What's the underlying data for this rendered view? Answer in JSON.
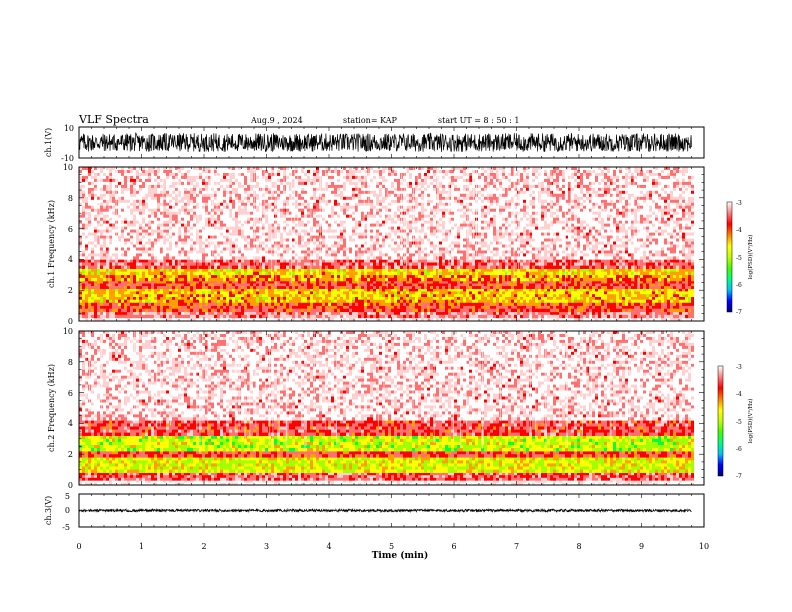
{
  "header": {
    "title": "VLF Spectra",
    "date": "Aug.9 , 2024",
    "station": "station= KAP",
    "start": "start UT = 8 : 50 : 1"
  },
  "colors": {
    "scale": [
      "#00008b",
      "#0000ff",
      "#00a0ff",
      "#00ffff",
      "#00ff40",
      "#a0ff00",
      "#ffff00",
      "#ffa000",
      "#ff0000",
      "#ff7070",
      "#ffd0d0",
      "#ffffff"
    ],
    "background": "#ffffff",
    "trace": "#000000"
  },
  "chart_data": [
    {
      "type": "line",
      "ylabel": "ch.1(V)",
      "ylim": [
        -10,
        10
      ],
      "yticks": [
        -10,
        10
      ],
      "xlim": [
        0,
        10
      ],
      "signal_range": [
        -6,
        6
      ],
      "note_visible": "dense waveform trace"
    },
    {
      "type": "heatmap",
      "ylabel": "ch.1 Frequency (kHz)",
      "ylim": [
        0,
        10
      ],
      "yticks": [
        0,
        2,
        4,
        6,
        8,
        10
      ],
      "xlim": [
        0,
        10
      ],
      "data_end_min": 9.8,
      "colorbar": {
        "label": "log(PSD)(V²/Hz)",
        "ticks": [
          -3,
          -4,
          -5,
          -6,
          -7
        ],
        "range": [
          -7,
          -3
        ]
      },
      "bands": [
        {
          "from_khz": 0.0,
          "to_khz": 0.2,
          "level": -3.0
        },
        {
          "from_khz": 0.2,
          "to_khz": 0.6,
          "level": -3.6
        },
        {
          "from_khz": 0.6,
          "to_khz": 1.0,
          "level": -4.0
        },
        {
          "from_khz": 1.0,
          "to_khz": 1.2,
          "level": -4.2
        },
        {
          "from_khz": 1.2,
          "to_khz": 2.1,
          "level": -4.6
        },
        {
          "from_khz": 2.1,
          "to_khz": 2.6,
          "level": -4.0
        },
        {
          "from_khz": 2.6,
          "to_khz": 3.0,
          "level": -4.4
        },
        {
          "from_khz": 3.0,
          "to_khz": 3.4,
          "level": -4.7
        },
        {
          "from_khz": 3.4,
          "to_khz": 4.0,
          "level": -3.8
        },
        {
          "from_khz": 4.0,
          "to_khz": 10.0,
          "level": -3.3
        }
      ]
    },
    {
      "type": "heatmap",
      "ylabel": "ch.2 Frequency (kHz)",
      "ylim": [
        0,
        10
      ],
      "yticks": [
        0,
        2,
        4,
        6,
        8,
        10
      ],
      "xlim": [
        0,
        10
      ],
      "data_end_min": 9.8,
      "colorbar": {
        "label": "log(PSD)(V²/Hz)",
        "ticks": [
          -3,
          -4,
          -5,
          -6,
          -7
        ],
        "range": [
          -7,
          -3
        ]
      },
      "bands": [
        {
          "from_khz": 0.0,
          "to_khz": 0.3,
          "level": -3.0
        },
        {
          "from_khz": 0.3,
          "to_khz": 0.8,
          "level": -3.8
        },
        {
          "from_khz": 0.8,
          "to_khz": 1.8,
          "level": -4.9
        },
        {
          "from_khz": 1.8,
          "to_khz": 2.2,
          "level": -4.0
        },
        {
          "from_khz": 2.2,
          "to_khz": 3.2,
          "level": -5.0
        },
        {
          "from_khz": 3.2,
          "to_khz": 4.2,
          "level": -3.9
        },
        {
          "from_khz": 4.2,
          "to_khz": 10.0,
          "level": -3.3
        }
      ]
    },
    {
      "type": "line",
      "ylabel": "ch.3(V)",
      "ylim": [
        -5,
        5
      ],
      "yticks": [
        -5,
        0,
        5
      ],
      "xlim": [
        0,
        10
      ],
      "signal_range": [
        -0.4,
        0.4
      ],
      "note_visible": "thin flat trace"
    }
  ],
  "xaxis": {
    "label": "Time (min)",
    "ticks": [
      0,
      1,
      2,
      3,
      4,
      5,
      6,
      7,
      8,
      9,
      10
    ]
  }
}
